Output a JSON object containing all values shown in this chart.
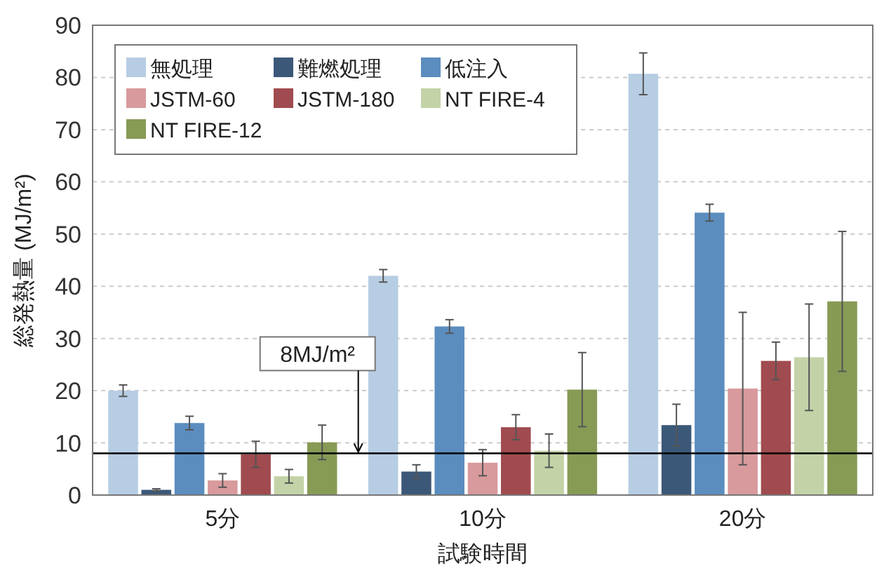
{
  "chart_data": {
    "type": "bar",
    "xlabel": "試験時間",
    "ylabel": "総発熱量 (MJ/m²)",
    "categories": [
      "5分",
      "10分",
      "20分"
    ],
    "series": [
      {
        "name": "無処理",
        "color": "#b7cde3",
        "values": [
          20,
          42,
          80.7
        ],
        "errors": [
          1.1,
          1.2,
          4
        ]
      },
      {
        "name": "難燃処理",
        "color": "#3c5878",
        "values": [
          1,
          4.5,
          13.4
        ],
        "errors": [
          0.2,
          1.3,
          4
        ]
      },
      {
        "name": "低注入",
        "color": "#5b8dbf",
        "values": [
          13.8,
          32.3,
          54.1
        ],
        "errors": [
          1.3,
          1.3,
          1.6
        ]
      },
      {
        "name": "JSTM-60",
        "color": "#d89a9c",
        "values": [
          2.8,
          6.2,
          20.4
        ],
        "errors": [
          1.3,
          2.5,
          14.6
        ]
      },
      {
        "name": "JSTM-180",
        "color": "#a04b4f",
        "values": [
          7.8,
          13,
          25.7
        ],
        "errors": [
          2.5,
          2.4,
          3.6
        ]
      },
      {
        "name": "NT FIRE-4",
        "color": "#c3d3a7",
        "values": [
          3.6,
          8.5,
          26.4
        ],
        "errors": [
          1.3,
          3.2,
          10.2
        ]
      },
      {
        "name": "NT FIRE-12",
        "color": "#879b55",
        "values": [
          10.1,
          20.2,
          37.1
        ],
        "errors": [
          3.3,
          7.1,
          13.4
        ]
      }
    ],
    "ylim": [
      0,
      90
    ],
    "yticks": [
      0,
      10,
      20,
      30,
      40,
      50,
      60,
      70,
      80,
      90
    ],
    "grid": "y",
    "legend": "top left",
    "ref_lines": [
      {
        "axis": "y",
        "value": 8,
        "label": "8MJ/m²",
        "color": "#000000"
      }
    ]
  }
}
